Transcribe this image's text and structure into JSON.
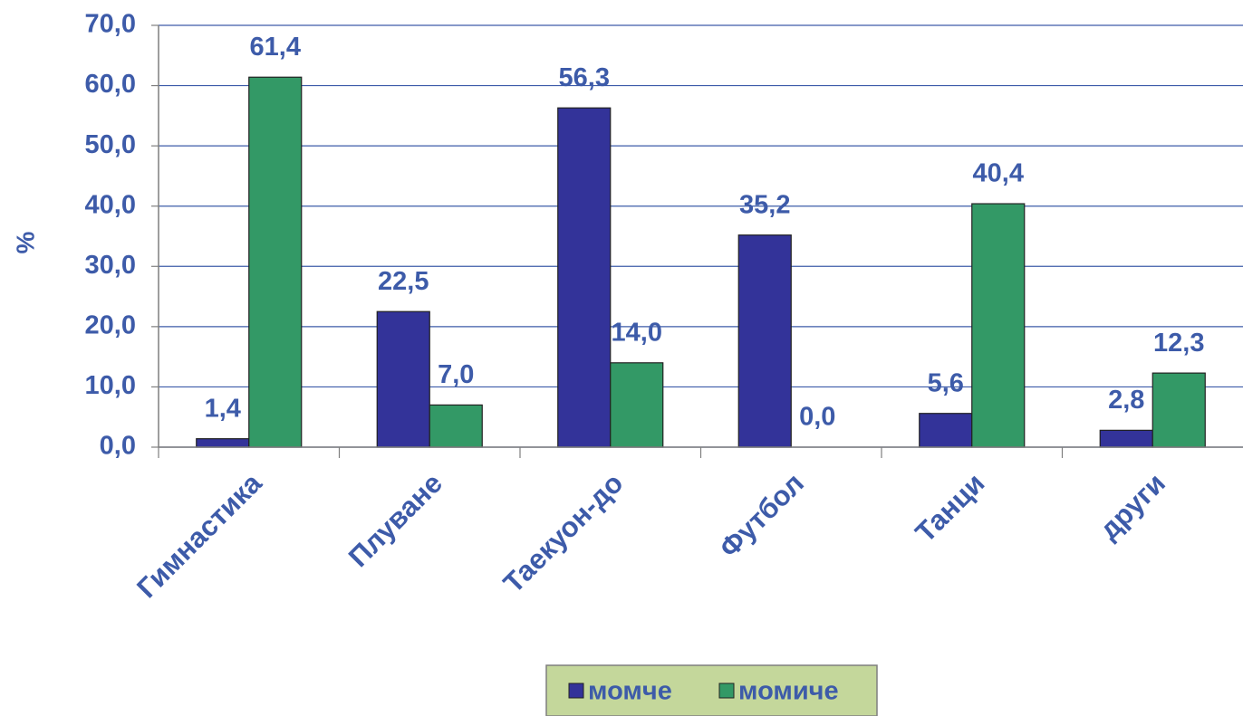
{
  "chart_data": {
    "type": "bar",
    "y_label": "%",
    "categories": [
      "Гимнастика",
      "Плуване",
      "Таекуон-до",
      "Футбол",
      "Танци",
      "други"
    ],
    "series": [
      {
        "name": "момче",
        "color": "#333399",
        "values": [
          1.4,
          22.5,
          56.3,
          35.2,
          5.6,
          2.8
        ],
        "value_labels": [
          "1,4",
          "22,5",
          "56,3",
          "35,2",
          "5,6",
          "2,8"
        ]
      },
      {
        "name": "момиче",
        "color": "#339966",
        "values": [
          61.4,
          7.0,
          14.0,
          0.0,
          40.4,
          12.3
        ],
        "value_labels": [
          "61,4",
          "7,0",
          "14,0",
          "0,0",
          "40,4",
          "12,3"
        ]
      }
    ],
    "ylim": [
      0,
      70
    ],
    "yticks": [
      {
        "value": 0,
        "label": "0,0"
      },
      {
        "value": 10,
        "label": "10,0"
      },
      {
        "value": 20,
        "label": "20,0"
      },
      {
        "value": 30,
        "label": "30,0"
      },
      {
        "value": 40,
        "label": "40,0"
      },
      {
        "value": 50,
        "label": "50,0"
      },
      {
        "value": 60,
        "label": "60,0"
      },
      {
        "value": 70,
        "label": "70,0"
      }
    ],
    "grid": true,
    "legend": "bottom"
  }
}
